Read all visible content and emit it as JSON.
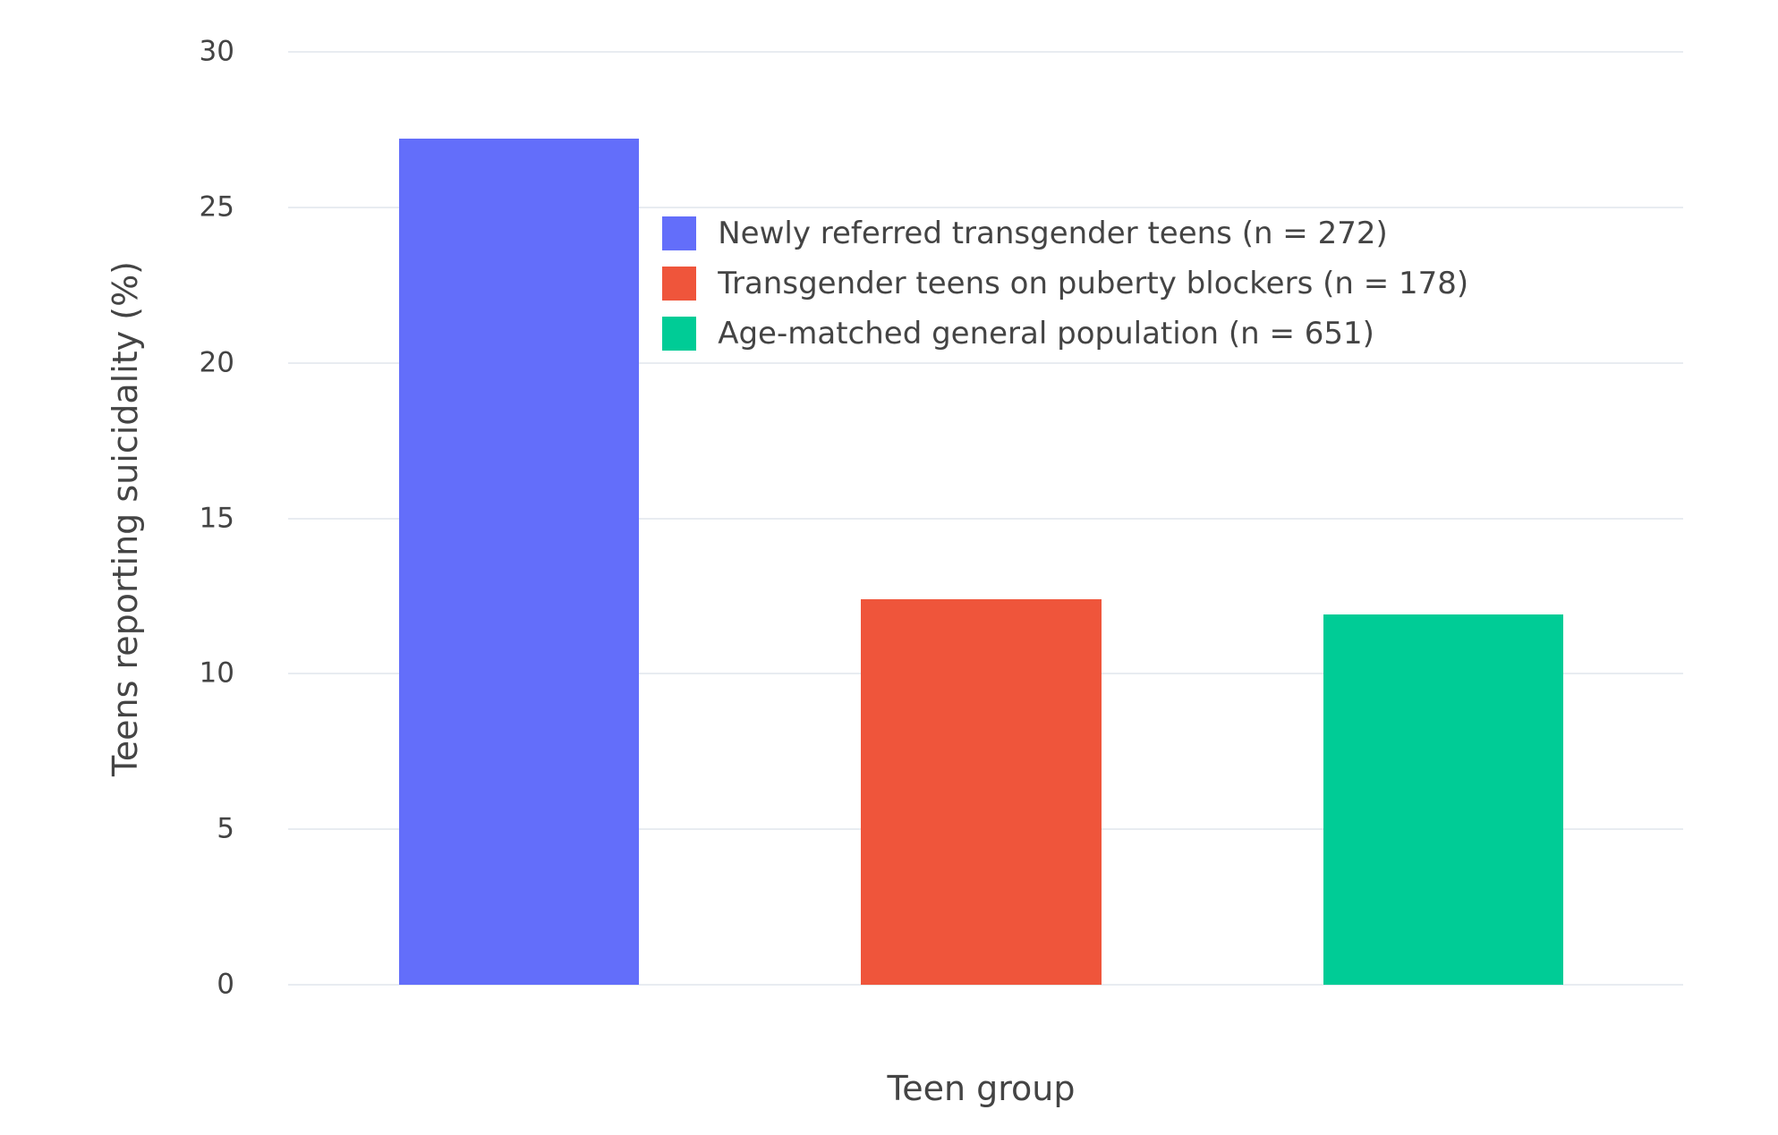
{
  "chart_data": {
    "type": "bar",
    "categories": [
      "Newly referred transgender teens (n = 272)",
      "Transgender teens on puberty blockers (n = 178)",
      "Age-matched general population (n = 651)"
    ],
    "values": [
      27.2,
      12.4,
      11.9
    ],
    "colors": [
      "#636efa",
      "#ef553b",
      "#00cc96"
    ],
    "title": "",
    "xlabel": "Teen group",
    "ylabel": "Teens reporting suicidality (%)",
    "ylim": [
      0,
      30
    ],
    "yticks": [
      0,
      5,
      10,
      15,
      20,
      25,
      30
    ],
    "grid": true,
    "legend_position": "inside-top-left",
    "background_color": "#ffffff",
    "gridline_color": "#e8ecf1",
    "text_color": "#444444"
  }
}
